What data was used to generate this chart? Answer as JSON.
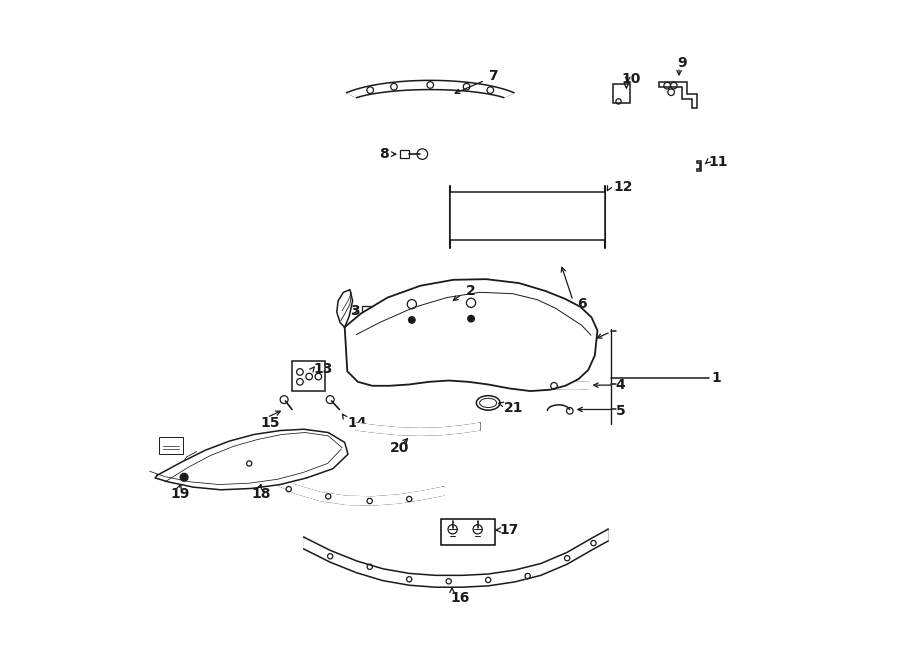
{
  "bg_color": "#ffffff",
  "line_color": "#1a1a1a",
  "fig_width": 9.0,
  "fig_height": 6.61,
  "label_fontsize": 10
}
